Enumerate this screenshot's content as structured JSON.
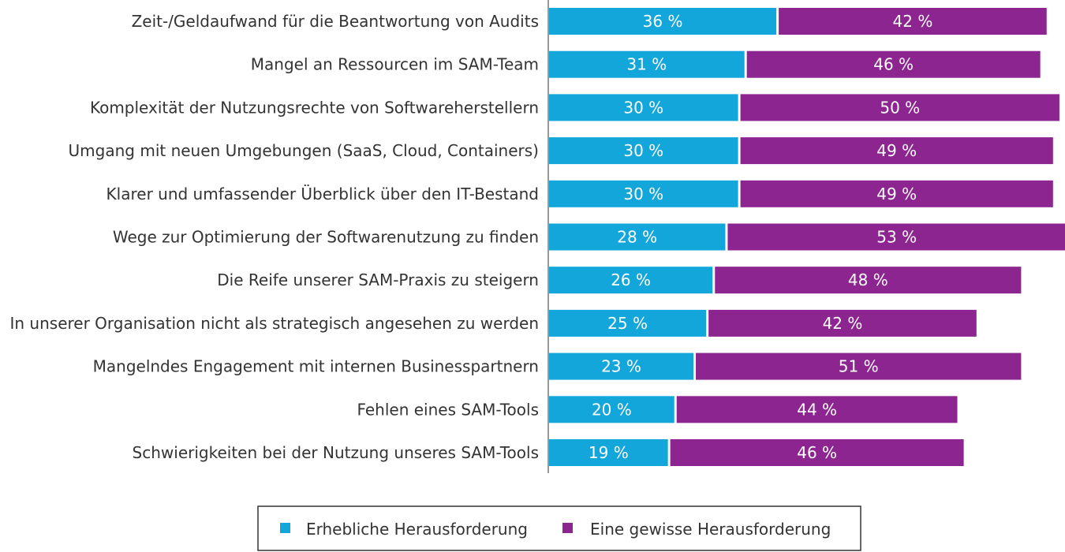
{
  "chart_data": {
    "type": "bar",
    "orientation": "horizontal",
    "stacked": true,
    "categories": [
      "Zeit-/Geldaufwand für die Beantwortung von Audits",
      "Mangel an Ressourcen im SAM-Team",
      "Komplexität der Nutzungsrechte von Softwareherstellern",
      "Umgang mit neuen Umgebungen (SaaS, Cloud, Containers)",
      "Klarer und umfassender Überblick über den IT-Bestand",
      "Wege zur Optimierung der Softwarenutzung zu finden",
      "Die Reife unserer SAM-Praxis zu steigern",
      "In unserer Organisation nicht als strategisch angesehen zu werden",
      "Mangelndes Engagement mit internen Businesspartnern",
      "Fehlen eines SAM-Tools",
      "Schwierigkeiten bei der Nutzung unseres SAM-Tools"
    ],
    "series": [
      {
        "name": "Erhebliche Herausforderung",
        "color": "#12a6db",
        "values": [
          36,
          31,
          30,
          30,
          30,
          28,
          26,
          25,
          23,
          20,
          19
        ],
        "labels": [
          "36 %",
          "31 %",
          "30 %",
          "30 %",
          "30 %",
          "28 %",
          "26 %",
          "25 %",
          "23 %",
          "20 %",
          "19 %"
        ]
      },
      {
        "name": "Eine gewisse Herausforderung",
        "color": "#8c2590",
        "values": [
          42,
          46,
          50,
          49,
          49,
          53,
          48,
          42,
          51,
          44,
          46
        ],
        "labels": [
          "42 %",
          "46 %",
          "50 %",
          "49 %",
          "49 %",
          "53 %",
          "48 %",
          "42 %",
          "51 %",
          "44 %",
          "46 %"
        ]
      }
    ],
    "xlim": [
      0,
      81
    ],
    "grid": false,
    "legend_position": "bottom"
  }
}
